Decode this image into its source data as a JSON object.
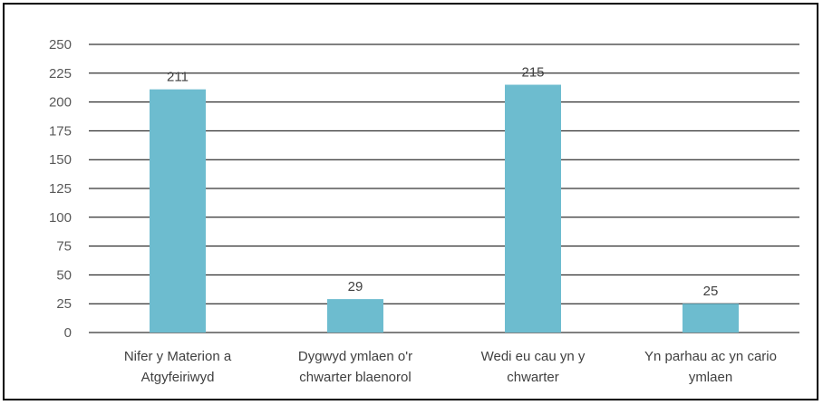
{
  "chart_data": {
    "type": "bar",
    "categories": [
      [
        "Nifer y Materion a",
        "Atgyfeiriwyd"
      ],
      [
        "Dygwyd ymlaen o'r",
        "chwarter blaenorol"
      ],
      [
        "Wedi eu cau yn y",
        "chwarter"
      ],
      [
        "Yn parhau ac yn cario",
        "ymlaen"
      ]
    ],
    "values": [
      211,
      29,
      215,
      25
    ],
    "data_labels": [
      "211",
      "29",
      "215",
      "25"
    ],
    "y_ticks": [
      "0",
      "25",
      "50",
      "75",
      "100",
      "125",
      "150",
      "175",
      "200",
      "225",
      "250"
    ],
    "ylim": [
      0,
      250
    ],
    "grid": true,
    "bar_color": "#6dbccf",
    "grid_color": "#000000",
    "title": "",
    "xlabel": "",
    "ylabel": ""
  }
}
